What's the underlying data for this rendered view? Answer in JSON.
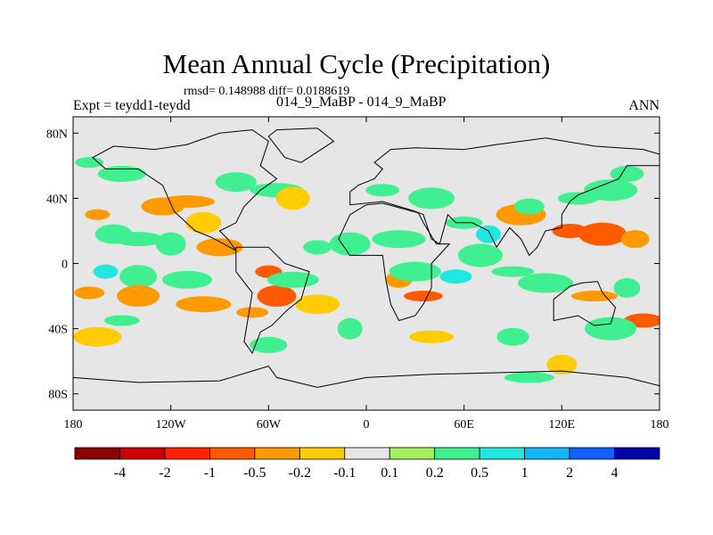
{
  "chart_data": {
    "type": "heatmap",
    "title": "Mean Annual Cycle (Precipitation)",
    "stats_line": "rmsd= 0.148988 diff= 0.0188619",
    "experiment_label": "Expt = teydd1-teydd",
    "case_label": "014_9_MaBP - 014_9_MaBP",
    "season_label": "ANN",
    "x_axis": {
      "range": [
        -180,
        180
      ],
      "ticks": [
        {
          "value": -180,
          "label": "180"
        },
        {
          "value": -120,
          "label": "120W"
        },
        {
          "value": -60,
          "label": "60W"
        },
        {
          "value": 0,
          "label": "0"
        },
        {
          "value": 60,
          "label": "60E"
        },
        {
          "value": 120,
          "label": "120E"
        },
        {
          "value": 180,
          "label": "180"
        }
      ]
    },
    "y_axis": {
      "range": [
        -90,
        90
      ],
      "ticks": [
        {
          "value": 80,
          "label": "80N"
        },
        {
          "value": 40,
          "label": "40N"
        },
        {
          "value": 0,
          "label": "0"
        },
        {
          "value": -40,
          "label": "40S"
        },
        {
          "value": -80,
          "label": "80S"
        }
      ]
    },
    "colorbar": {
      "bins": [
        {
          "color": "#8b0000"
        },
        {
          "color": "#cc0000"
        },
        {
          "color": "#ff2000"
        },
        {
          "color": "#ff5a00"
        },
        {
          "color": "#ff9900"
        },
        {
          "color": "#ffcc00"
        },
        {
          "color": "#e6e6e6"
        },
        {
          "color": "#a0f060"
        },
        {
          "color": "#40f090"
        },
        {
          "color": "#20e8e0"
        },
        {
          "color": "#10b8f8"
        },
        {
          "color": "#1060ff"
        },
        {
          "color": "#0000a8"
        }
      ],
      "labels": [
        "-4",
        "-2",
        "-1",
        "-0.5",
        "-0.2",
        "-0.1",
        "0.1",
        "0.2",
        "0.5",
        "1",
        "2",
        "4"
      ]
    },
    "anomaly_regions": [
      {
        "lon": -165,
        "lat": 30,
        "value": -0.3
      },
      {
        "lon": -155,
        "lat": 18,
        "value": 0.3
      },
      {
        "lon": -140,
        "lat": 15,
        "value": 0.2
      },
      {
        "lon": -120,
        "lat": 12,
        "value": 0.25
      },
      {
        "lon": -125,
        "lat": 35,
        "value": -0.4
      },
      {
        "lon": -110,
        "lat": 38,
        "value": -0.3
      },
      {
        "lon": -100,
        "lat": 25,
        "value": -0.2
      },
      {
        "lon": -150,
        "lat": 55,
        "value": 0.2
      },
      {
        "lon": -170,
        "lat": 62,
        "value": 0.2
      },
      {
        "lon": -80,
        "lat": 50,
        "value": 0.2
      },
      {
        "lon": -55,
        "lat": 45,
        "value": 0.3
      },
      {
        "lon": -45,
        "lat": 40,
        "value": -0.2
      },
      {
        "lon": -90,
        "lat": 10,
        "value": -0.25
      },
      {
        "lon": -60,
        "lat": -5,
        "value": -0.8
      },
      {
        "lon": -55,
        "lat": -20,
        "value": -0.6
      },
      {
        "lon": -45,
        "lat": -10,
        "value": 0.3
      },
      {
        "lon": -70,
        "lat": -30,
        "value": -0.3
      },
      {
        "lon": -30,
        "lat": -25,
        "value": -0.2
      },
      {
        "lon": -160,
        "lat": -5,
        "value": 0.5
      },
      {
        "lon": -140,
        "lat": -8,
        "value": 0.4
      },
      {
        "lon": -110,
        "lat": -10,
        "value": 0.3
      },
      {
        "lon": -170,
        "lat": -18,
        "value": -0.5
      },
      {
        "lon": -140,
        "lat": -20,
        "value": -0.4
      },
      {
        "lon": -100,
        "lat": -25,
        "value": -0.3
      },
      {
        "lon": -150,
        "lat": -35,
        "value": 0.2
      },
      {
        "lon": -165,
        "lat": -45,
        "value": -0.2
      },
      {
        "lon": -30,
        "lat": 10,
        "value": 0.2
      },
      {
        "lon": -10,
        "lat": 12,
        "value": 0.3
      },
      {
        "lon": 20,
        "lat": 15,
        "value": 0.25
      },
      {
        "lon": 10,
        "lat": 45,
        "value": 0.2
      },
      {
        "lon": 40,
        "lat": 40,
        "value": 0.3
      },
      {
        "lon": 20,
        "lat": -10,
        "value": -0.3
      },
      {
        "lon": 35,
        "lat": -20,
        "value": -1.0
      },
      {
        "lon": 30,
        "lat": -5,
        "value": 0.4
      },
      {
        "lon": 55,
        "lat": -8,
        "value": 0.5
      },
      {
        "lon": 70,
        "lat": 5,
        "value": 0.4
      },
      {
        "lon": 75,
        "lat": 18,
        "value": 0.5
      },
      {
        "lon": 60,
        "lat": 25,
        "value": 0.2
      },
      {
        "lon": 95,
        "lat": 30,
        "value": -0.3
      },
      {
        "lon": 100,
        "lat": 35,
        "value": 0.3
      },
      {
        "lon": 90,
        "lat": -5,
        "value": 0.3
      },
      {
        "lon": 110,
        "lat": -12,
        "value": 0.4
      },
      {
        "lon": 125,
        "lat": 20,
        "value": -0.6
      },
      {
        "lon": 145,
        "lat": 18,
        "value": -0.8
      },
      {
        "lon": 165,
        "lat": 15,
        "value": -0.5
      },
      {
        "lon": 130,
        "lat": 40,
        "value": 0.3
      },
      {
        "lon": 150,
        "lat": 45,
        "value": 0.2
      },
      {
        "lon": 160,
        "lat": 55,
        "value": 0.2
      },
      {
        "lon": 140,
        "lat": -20,
        "value": -0.3
      },
      {
        "lon": 160,
        "lat": -15,
        "value": 0.3
      },
      {
        "lon": 170,
        "lat": -35,
        "value": -0.8
      },
      {
        "lon": 150,
        "lat": -40,
        "value": 0.3
      },
      {
        "lon": 90,
        "lat": -45,
        "value": 0.2
      },
      {
        "lon": 40,
        "lat": -45,
        "value": -0.2
      },
      {
        "lon": -10,
        "lat": -40,
        "value": 0.2
      },
      {
        "lon": -60,
        "lat": -50,
        "value": 0.2
      },
      {
        "lon": 100,
        "lat": -70,
        "value": 0.2
      },
      {
        "lon": 120,
        "lat": -62,
        "value": -0.2
      }
    ],
    "land_outlines": [
      {
        "name": "north-america",
        "points": [
          [
            -168,
            65
          ],
          [
            -155,
            72
          ],
          [
            -130,
            70
          ],
          [
            -110,
            73
          ],
          [
            -90,
            80
          ],
          [
            -70,
            82
          ],
          [
            -60,
            75
          ],
          [
            -65,
            60
          ],
          [
            -55,
            52
          ],
          [
            -65,
            45
          ],
          [
            -75,
            35
          ],
          [
            -80,
            25
          ],
          [
            -90,
            20
          ],
          [
            -85,
            15
          ],
          [
            -80,
            8
          ],
          [
            -95,
            16
          ],
          [
            -105,
            20
          ],
          [
            -118,
            32
          ],
          [
            -125,
            48
          ],
          [
            -140,
            58
          ],
          [
            -160,
            58
          ]
        ]
      },
      {
        "name": "greenland",
        "points": [
          [
            -55,
            82
          ],
          [
            -30,
            83
          ],
          [
            -20,
            75
          ],
          [
            -40,
            62
          ],
          [
            -50,
            65
          ],
          [
            -60,
            78
          ]
        ]
      },
      {
        "name": "south-america",
        "points": [
          [
            -80,
            10
          ],
          [
            -60,
            10
          ],
          [
            -50,
            0
          ],
          [
            -35,
            -5
          ],
          [
            -40,
            -22
          ],
          [
            -48,
            -28
          ],
          [
            -58,
            -38
          ],
          [
            -65,
            -42
          ],
          [
            -70,
            -55
          ],
          [
            -75,
            -48
          ],
          [
            -72,
            -30
          ],
          [
            -70,
            -18
          ],
          [
            -80,
            -5
          ]
        ]
      },
      {
        "name": "eurasia",
        "points": [
          [
            -10,
            36
          ],
          [
            -10,
            44
          ],
          [
            -5,
            48
          ],
          [
            5,
            52
          ],
          [
            10,
            58
          ],
          [
            5,
            62
          ],
          [
            15,
            70
          ],
          [
            30,
            71
          ],
          [
            60,
            70
          ],
          [
            80,
            73
          ],
          [
            110,
            77
          ],
          [
            140,
            72
          ],
          [
            170,
            70
          ],
          [
            180,
            67
          ],
          [
            180,
            60
          ],
          [
            160,
            60
          ],
          [
            155,
            52
          ],
          [
            140,
            46
          ],
          [
            130,
            42
          ],
          [
            125,
            38
          ],
          [
            120,
            30
          ],
          [
            120,
            22
          ],
          [
            110,
            20
          ],
          [
            105,
            10
          ],
          [
            100,
            5
          ],
          [
            95,
            15
          ],
          [
            88,
            22
          ],
          [
            80,
            10
          ],
          [
            75,
            20
          ],
          [
            65,
            25
          ],
          [
            55,
            25
          ],
          [
            50,
            30
          ],
          [
            45,
            12
          ],
          [
            40,
            15
          ],
          [
            35,
            30
          ],
          [
            30,
            32
          ],
          [
            20,
            35
          ],
          [
            10,
            38
          ]
        ]
      },
      {
        "name": "africa",
        "points": [
          [
            -17,
            15
          ],
          [
            -10,
            30
          ],
          [
            0,
            36
          ],
          [
            10,
            37
          ],
          [
            32,
            31
          ],
          [
            35,
            25
          ],
          [
            43,
            12
          ],
          [
            51,
            12
          ],
          [
            40,
            0
          ],
          [
            40,
            -15
          ],
          [
            35,
            -25
          ],
          [
            30,
            -32
          ],
          [
            20,
            -35
          ],
          [
            15,
            -25
          ],
          [
            12,
            -10
          ],
          [
            10,
            5
          ],
          [
            0,
            5
          ],
          [
            -10,
            5
          ]
        ]
      },
      {
        "name": "australia",
        "points": [
          [
            115,
            -22
          ],
          [
            125,
            -14
          ],
          [
            132,
            -12
          ],
          [
            142,
            -11
          ],
          [
            145,
            -18
          ],
          [
            153,
            -27
          ],
          [
            150,
            -37
          ],
          [
            140,
            -38
          ],
          [
            130,
            -32
          ],
          [
            115,
            -35
          ]
        ]
      },
      {
        "name": "antarctica",
        "points": [
          [
            -180,
            -70
          ],
          [
            -140,
            -73
          ],
          [
            -90,
            -72
          ],
          [
            -60,
            -63
          ],
          [
            -55,
            -70
          ],
          [
            -30,
            -76
          ],
          [
            0,
            -70
          ],
          [
            40,
            -68
          ],
          [
            80,
            -67
          ],
          [
            120,
            -66
          ],
          [
            160,
            -70
          ],
          [
            180,
            -75
          ],
          [
            180,
            -90
          ],
          [
            -180,
            -90
          ]
        ]
      }
    ]
  }
}
